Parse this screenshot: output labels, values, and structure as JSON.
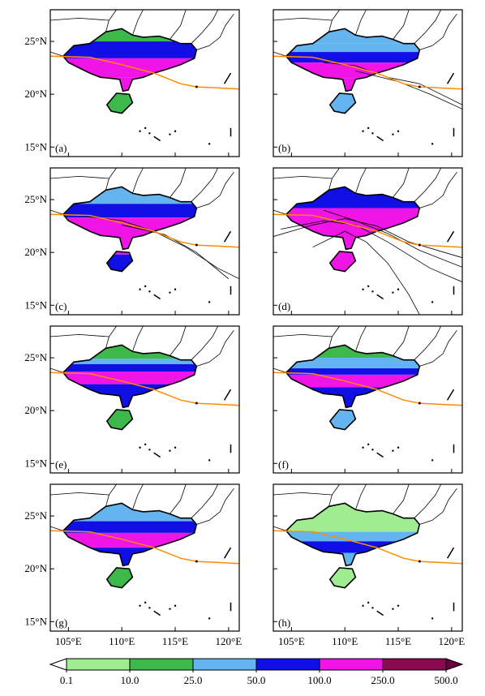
{
  "panels": [
    {
      "label": "(a)"
    },
    {
      "label": "(b)"
    },
    {
      "label": "(c)"
    },
    {
      "label": "(d)"
    },
    {
      "label": "(e)"
    },
    {
      "label": "(f)"
    },
    {
      "label": "(g)"
    },
    {
      "label": "(h)"
    }
  ],
  "axes": {
    "xlim": [
      103.3,
      121
    ],
    "ylim": [
      14.1,
      28
    ],
    "xticks": [
      {
        "value": 105,
        "label": "105°E"
      },
      {
        "value": 110,
        "label": "110°E"
      },
      {
        "value": 115,
        "label": "115°E"
      },
      {
        "value": 120,
        "label": "120°E"
      }
    ],
    "yticks": [
      {
        "value": 15,
        "label": "15°N"
      },
      {
        "value": 20,
        "label": "20°N"
      },
      {
        "value": 25,
        "label": "25°N"
      }
    ]
  },
  "colorbar": {
    "levels": [
      0.1,
      {
        "value": 10,
        "label": "10.0"
      },
      {
        "value": 25,
        "label": "25.0"
      },
      {
        "value": 50,
        "label": "50.0"
      },
      {
        "value": 100,
        "label": "100.0"
      },
      {
        "value": 250,
        "label": "250.0"
      },
      {
        "value": 500,
        "label": "500.0"
      }
    ],
    "colors": [
      "#ffffff",
      "#a0ec90",
      "#3db94c",
      "#64b4f0",
      "#1010e6",
      "#f014e6",
      "#8a0a50",
      "#6a0040"
    ]
  },
  "track_color": "#ff8c00"
}
